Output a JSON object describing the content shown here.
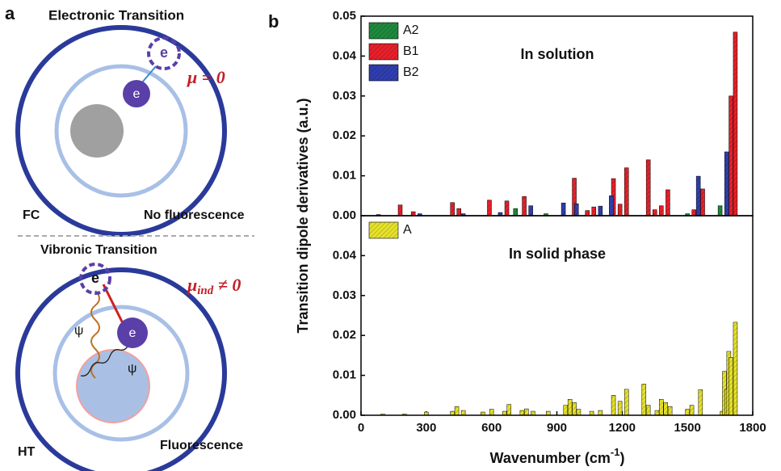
{
  "diagram": {
    "label": "a",
    "top": {
      "title": "Electronic Transition",
      "electron_from": "e",
      "electron_to": "e",
      "equation": "μ = 0",
      "state": "FC",
      "result": "No fluorescence"
    },
    "bottom": {
      "title": "Vibronic Transition",
      "electron_from": "e",
      "electron_to": "e",
      "wave_1": "ψ",
      "wave_2": "ψ",
      "equation_symbol": "μ",
      "equation_subscript": "ind",
      "equation_rest": " ≠ 0",
      "state": "HT",
      "result": "Fluorescence"
    }
  },
  "chart_data": [
    {
      "type": "bar",
      "panel_label": "b",
      "annotation": "In solution",
      "ylabel": "Transition dipole derivatives (a.u.)",
      "xlim": [
        0,
        1800
      ],
      "ylim": [
        0,
        0.05
      ],
      "yticks": [
        {
          "value": 0,
          "label": "0.00"
        },
        0.01,
        0.02,
        0.03,
        0.04,
        0.05
      ],
      "series": [
        {
          "name": "A2",
          "color": "#1e8a3c",
          "x": [
            710,
            850,
            1500,
            1650
          ],
          "values": [
            0.0018,
            0.0005,
            0.0005,
            0.0025
          ]
        },
        {
          "name": "B1",
          "color": "#e8202a",
          "x": [
            80,
            180,
            240,
            420,
            450,
            590,
            670,
            750,
            980,
            1040,
            1070,
            1160,
            1190,
            1220,
            1320,
            1350,
            1380,
            1410,
            1530,
            1570,
            1700,
            1720
          ],
          "values": [
            0.0003,
            0.0027,
            0.001,
            0.0033,
            0.0018,
            0.0039,
            0.0037,
            0.0048,
            0.0094,
            0.0013,
            0.0022,
            0.0093,
            0.0029,
            0.012,
            0.014,
            0.0015,
            0.0025,
            0.0065,
            0.0015,
            0.0067,
            0.03,
            0.046
          ]
        },
        {
          "name": "B2",
          "color": "#2f3fb0",
          "x": [
            270,
            470,
            640,
            780,
            930,
            990,
            1100,
            1150,
            1550,
            1680
          ],
          "values": [
            0.0005,
            0.0005,
            0.0008,
            0.0025,
            0.0032,
            0.003,
            0.0024,
            0.005,
            0.0099,
            0.016
          ]
        }
      ]
    },
    {
      "type": "bar",
      "annotation": "In solid phase",
      "xlabel": {
        "text": "Wavenumber (cm",
        "superscript": "-1",
        "suffix": ")"
      },
      "xlim": [
        0,
        1800
      ],
      "ylim": [
        0,
        0.05
      ],
      "xticks": [
        0,
        300,
        600,
        900,
        1200,
        1500,
        1800
      ],
      "yticks": [
        {
          "value": 0,
          "label": "0.00"
        },
        0.01,
        0.02,
        0.03,
        0.04
      ],
      "series": [
        {
          "name": "A",
          "color": "#e6e22a",
          "x": [
            100,
            200,
            300,
            420,
            440,
            470,
            560,
            600,
            660,
            680,
            740,
            760,
            790,
            860,
            940,
            960,
            980,
            1000,
            1060,
            1100,
            1160,
            1190,
            1220,
            1300,
            1320,
            1360,
            1380,
            1400,
            1420,
            1500,
            1520,
            1560,
            1660,
            1670,
            1680,
            1690,
            1700,
            1720
          ],
          "values": [
            0.0003,
            0.0003,
            0.0008,
            0.001,
            0.0022,
            0.0012,
            0.0008,
            0.0015,
            0.001,
            0.0027,
            0.0012,
            0.0016,
            0.001,
            0.001,
            0.0025,
            0.004,
            0.0032,
            0.0015,
            0.001,
            0.0012,
            0.005,
            0.0035,
            0.0065,
            0.0078,
            0.0025,
            0.0012,
            0.004,
            0.0032,
            0.0022,
            0.0015,
            0.0025,
            0.0064,
            0.001,
            0.011,
            0.0065,
            0.016,
            0.0145,
            0.0233
          ]
        }
      ]
    }
  ]
}
